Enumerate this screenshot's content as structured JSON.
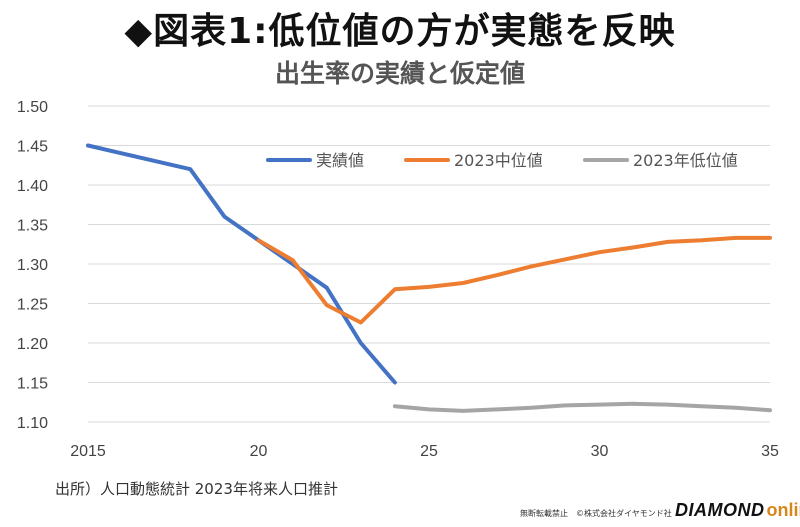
{
  "title": "◆図表1:低位値の方が実態を反映",
  "subtitle": "出生率の実績と仮定値",
  "source": "出所）人口動態統計  2023年将来人口推計",
  "copyright": "無断転載禁止　©株式会社ダイヤモンド社",
  "logo": {
    "part1": "DIAMOND",
    "part2": "online"
  },
  "chart_data": {
    "type": "line",
    "x_ticks": [
      "2015",
      "20",
      "25",
      "30",
      "35"
    ],
    "x_tick_values": [
      2015,
      2020,
      2025,
      2030,
      2035
    ],
    "xlim": [
      2015,
      2035
    ],
    "ylim": [
      1.1,
      1.5
    ],
    "y_ticks": [
      "1.50",
      "1.45",
      "1.40",
      "1.35",
      "1.30",
      "1.25",
      "1.20",
      "1.15",
      "1.10"
    ],
    "y_tick_values": [
      1.5,
      1.45,
      1.4,
      1.35,
      1.3,
      1.25,
      1.2,
      1.15,
      1.1
    ],
    "grid": "horizontal",
    "legend_position": "top-right",
    "series": [
      {
        "name": "実績値",
        "color": "#4472c4",
        "x": [
          2015,
          2016,
          2017,
          2018,
          2019,
          2020,
          2021,
          2022,
          2023,
          2024
        ],
        "y": [
          1.45,
          1.44,
          1.43,
          1.42,
          1.36,
          1.33,
          1.3,
          1.27,
          1.2,
          1.15
        ]
      },
      {
        "name": "2023中位値",
        "color": "#ed7d31",
        "x": [
          2020,
          2021,
          2022,
          2023,
          2024,
          2025,
          2026,
          2027,
          2028,
          2029,
          2030,
          2031,
          2032,
          2033,
          2034,
          2035
        ],
        "y": [
          1.33,
          1.305,
          1.248,
          1.226,
          1.268,
          1.271,
          1.276,
          1.286,
          1.297,
          1.306,
          1.315,
          1.321,
          1.328,
          1.33,
          1.333,
          1.333
        ]
      },
      {
        "name": "2023年低位値",
        "color": "#a5a5a5",
        "x": [
          2024,
          2025,
          2026,
          2027,
          2028,
          2029,
          2030,
          2031,
          2032,
          2033,
          2034,
          2035
        ],
        "y": [
          1.12,
          1.116,
          1.114,
          1.116,
          1.118,
          1.121,
          1.122,
          1.123,
          1.122,
          1.12,
          1.118,
          1.115
        ]
      }
    ]
  }
}
